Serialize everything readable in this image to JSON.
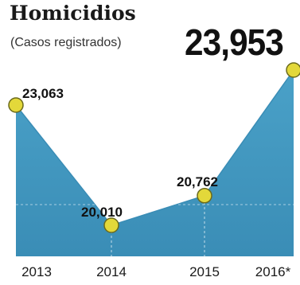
{
  "header": {
    "title": "Homicidios",
    "subtitle": "(Casos registrados)",
    "total": "23,953"
  },
  "colors": {
    "area_fill": "#4aa1c8",
    "area_fill_dark": "#3a8db6",
    "marker_fill": "#e3d83a",
    "marker_stroke": "#6b6a1c",
    "grid": "#ffffff",
    "text": "#111111"
  },
  "chart_data": {
    "type": "area",
    "categories": [
      "2013",
      "2014",
      "2015",
      "2016*"
    ],
    "values": [
      23063,
      20010,
      20762,
      23953
    ],
    "value_labels": [
      "23,063",
      "20,010",
      "20,762",
      ""
    ],
    "title": "Homicidios",
    "subtitle": "(Casos registrados)",
    "xlabel": "",
    "ylabel": "",
    "grid": true,
    "markers": true
  }
}
